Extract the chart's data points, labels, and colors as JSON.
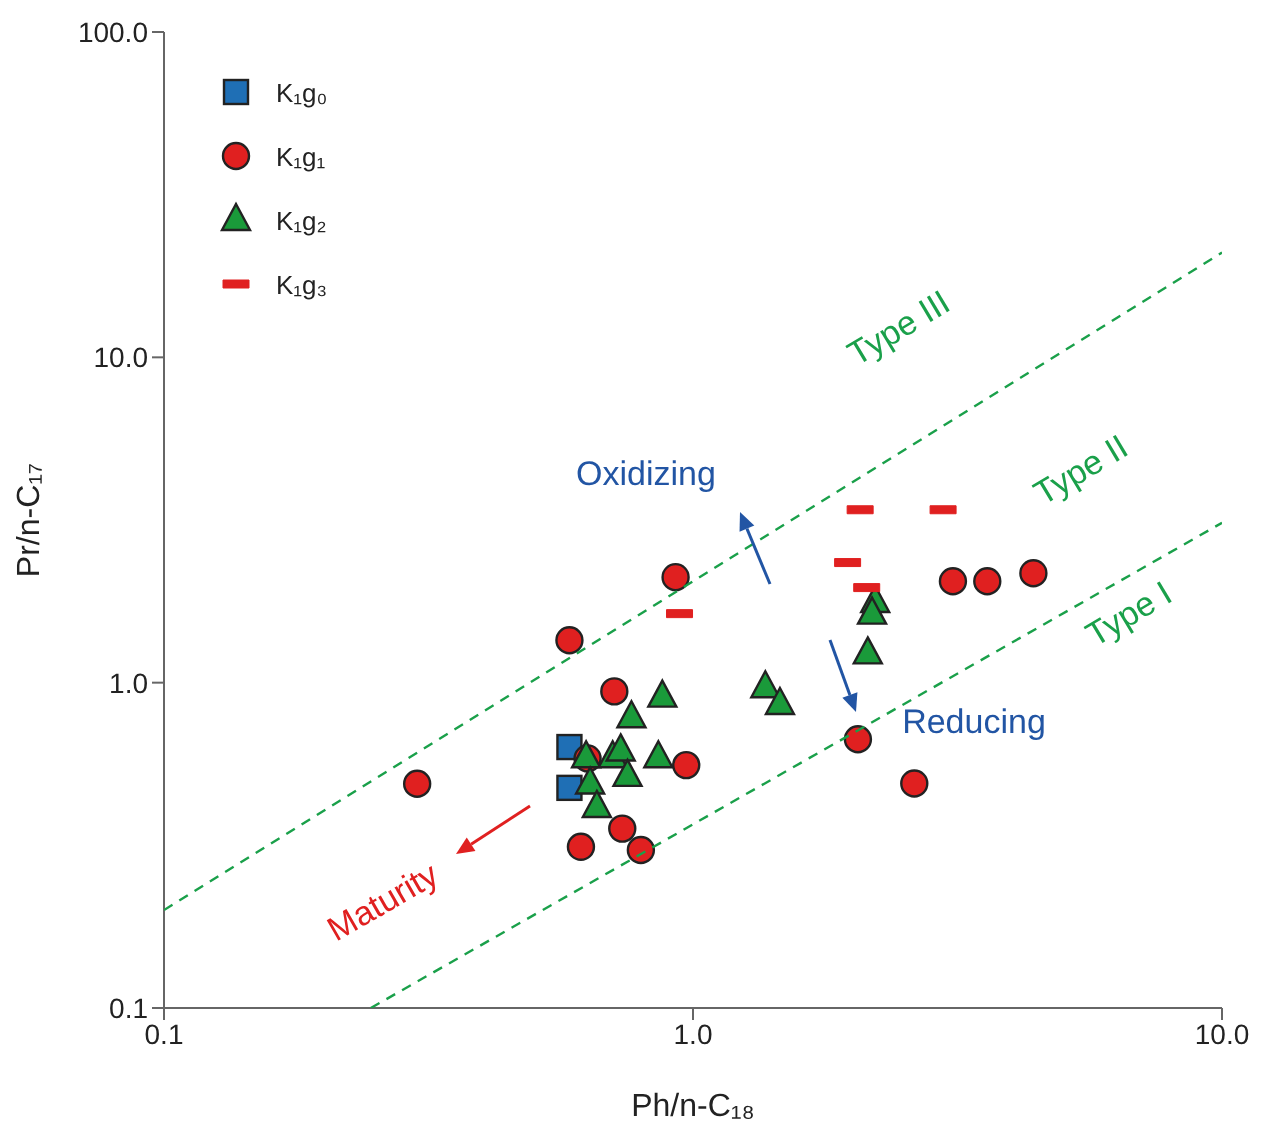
{
  "chart_data": {
    "type": "scatter",
    "xlabel": "Ph/n-C₁₈",
    "ylabel": "Pr/n-C₁₇",
    "log": "xy",
    "grid": false,
    "legend": "top left",
    "xlim": [
      0.1,
      10
    ],
    "xticks": [
      0.1,
      {
        "value": 1,
        "label": "1.0"
      },
      {
        "value": 10,
        "label": "10.0"
      }
    ],
    "ylim": [
      0.1,
      100
    ],
    "yticks": [
      0.1,
      {
        "value": 1,
        "label": "1.0"
      },
      {
        "value": 10,
        "label": "10.0"
      },
      {
        "value": 100,
        "label": "100.0"
      }
    ],
    "series": [
      {
        "name": "K₁g₀",
        "color": "#1f6fb5",
        "marker": "square",
        "x": [
          0.584,
          0.584
        ],
        "values": [
          0.634,
          0.475
        ]
      },
      {
        "name": "K₁g₁",
        "color": "#e02020",
        "marker": "circle",
        "x": [
          0.927,
          0.584,
          0.71,
          0.301,
          0.632,
          0.971,
          0.735,
          0.614,
          0.797,
          3.1,
          3.6,
          4.4,
          2.05,
          2.62
        ],
        "values": [
          2.11,
          1.35,
          0.94,
          0.489,
          0.585,
          0.558,
          0.356,
          0.313,
          0.306,
          2.05,
          2.05,
          2.17,
          0.67,
          0.49
        ]
      },
      {
        "name": "K₁g₂",
        "color": "#1a9a3a",
        "marker": "triangle",
        "x": [
          0.875,
          0.765,
          0.628,
          0.705,
          0.73,
          0.86,
          0.752,
          0.639,
          0.658,
          1.37,
          1.46,
          2.21,
          2.18,
          2.14
        ],
        "values": [
          0.906,
          0.783,
          0.59,
          0.59,
          0.619,
          0.59,
          0.517,
          0.49,
          0.415,
          0.968,
          0.86,
          1.77,
          1.63,
          1.23
        ]
      },
      {
        "name": "K₁g₃",
        "color": "#e02020",
        "x": [
          2.07,
          2.97,
          1.96,
          2.13,
          0.943
        ],
        "values": [
          3.4,
          3.4,
          2.34,
          1.96,
          1.63
        ]
      },
      {
        "type": "line",
        "color": "#1aa04a",
        "line_style": "dashed",
        "marker": "none",
        "x": [
          0.1,
          10
        ],
        "values": [
          0.2,
          21
        ]
      },
      {
        "type": "line",
        "color": "#1aa04a",
        "line_style": "dashed",
        "marker": "none",
        "x": [
          0.246,
          10
        ],
        "values": [
          0.1,
          3.1
        ]
      }
    ],
    "annotations": [
      "Type III",
      "Type II",
      "Type I",
      "Oxidizing",
      "Reducing",
      "Maturity"
    ]
  }
}
